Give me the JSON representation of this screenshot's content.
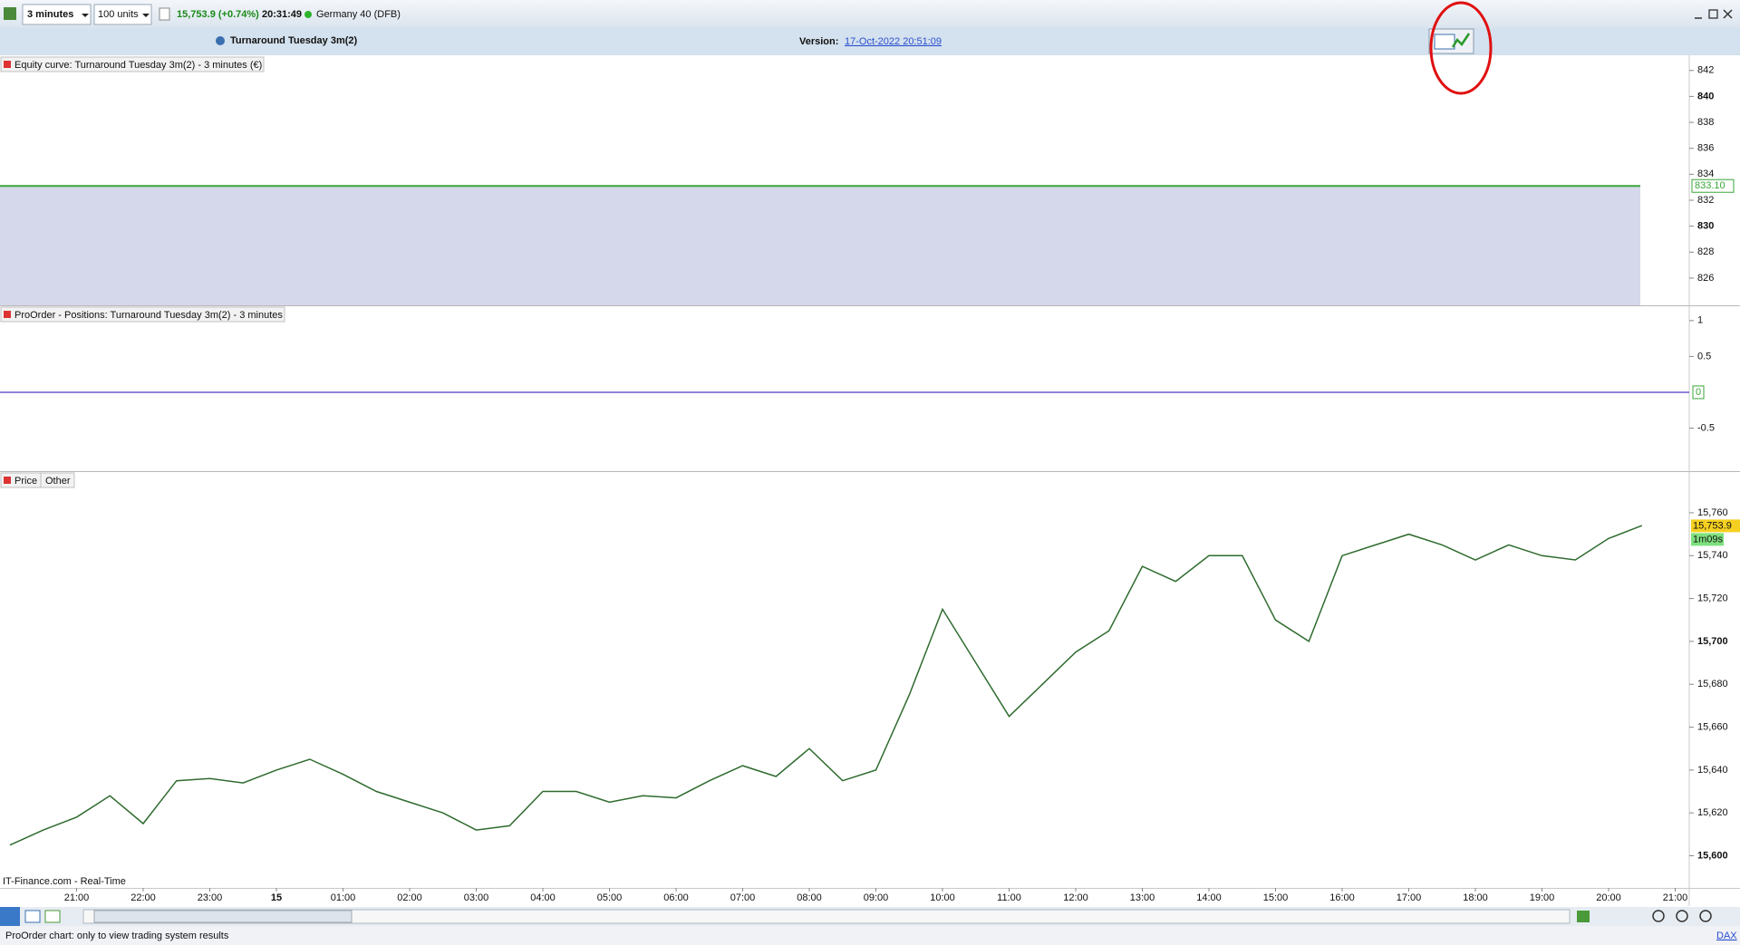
{
  "toolbar": {
    "timeframe": "3 minutes",
    "units": "100 units",
    "price_change": "15,753.9 (+0.74%)",
    "time": "20:31:49",
    "instrument": "Germany 40 (DFB)"
  },
  "header": {
    "system": "Turnaround Tuesday 3m(2)",
    "version_label": "Version:",
    "version": "17-Oct-2022 20:51:09"
  },
  "equity_chart": {
    "type": "area",
    "label": "Equity curve: Turnaround Tuesday 3m(2) - 3 minutes (€)",
    "value": 833.1,
    "value_label": "833.10",
    "color": "#3aa63a",
    "fill": "#d5d7ea",
    "ylim": [
      823.9,
      843.1
    ],
    "yticks": [
      826,
      828,
      830,
      832,
      834,
      836,
      838,
      840,
      842
    ]
  },
  "positions_chart": {
    "type": "line",
    "label": "ProOrder - Positions: Turnaround Tuesday 3m(2) - 3 minutes",
    "value": 0,
    "color": "#6a5acd",
    "ylim": [
      -1.1,
      1.2
    ],
    "yticks": [
      -0.5,
      0.5,
      1
    ]
  },
  "price_chart": {
    "type": "line",
    "label": "Price",
    "tab": "Other",
    "color": "#2f6b2f",
    "values": [
      15605,
      15612,
      15618,
      15628,
      15615,
      15635,
      15636,
      15634,
      15640,
      15645,
      15638,
      15630,
      15625,
      15620,
      15612,
      15614,
      15630,
      15630,
      15625,
      15628,
      15627,
      15635,
      15642,
      15637,
      15650,
      15635,
      15640,
      15675,
      15715,
      15690,
      15665,
      15680,
      15695,
      15705,
      15735,
      15728,
      15740,
      15740,
      15710,
      15700,
      15740,
      15745,
      15750,
      15745,
      15738,
      15745,
      15740,
      15738,
      15748,
      15754
    ],
    "last": 15753.9,
    "last_label": "15,753.9",
    "countdown": "1m09s",
    "ylim": [
      15585,
      15779
    ],
    "yticks": [
      {
        "value": 15600,
        "label": "15,600"
      },
      {
        "value": 15620,
        "label": "15,620"
      },
      {
        "value": 15640,
        "label": "15,640"
      },
      {
        "value": 15660,
        "label": "15,660"
      },
      {
        "value": 15680,
        "label": "15,680"
      },
      {
        "value": 15700,
        "label": "15,700"
      },
      {
        "value": 15720,
        "label": "15,720"
      },
      {
        "value": 15740,
        "label": "15,740"
      },
      {
        "value": 15760,
        "label": "15,760"
      }
    ],
    "xticks": [
      "21:00",
      "22:00",
      "23:00",
      "15",
      "01:00",
      "02:00",
      "03:00",
      "04:00",
      "05:00",
      "06:00",
      "07:00",
      "08:00",
      "09:00",
      "10:00",
      "11:00",
      "12:00",
      "13:00",
      "14:00",
      "15:00",
      "16:00",
      "17:00",
      "18:00",
      "19:00",
      "20:00",
      "21:00"
    ],
    "source": "IT-Finance.com - Real-Time"
  },
  "status": {
    "message": "ProOrder chart: only to view trading system results",
    "symbol": "DAX"
  }
}
